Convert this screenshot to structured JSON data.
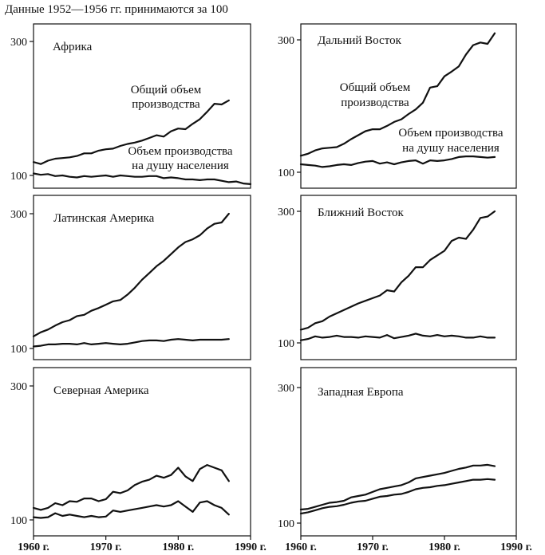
{
  "header": "Данные 1952—1956 гг. принимаются за 100",
  "colors": {
    "ink": "#111111",
    "background": "#ffffff"
  },
  "chart_data": [
    {
      "type": "line",
      "title": "Африка",
      "y_ticks": [
        100,
        300
      ],
      "xlim": [
        1960,
        1990
      ],
      "ylim": [
        90,
        320
      ],
      "annotations": [
        "Общий объем",
        "производства",
        "Объем производства",
        "на душу населения"
      ],
      "series": [
        {
          "name": "Общий объем производства",
          "x": [
            1960,
            1961,
            1962,
            1963,
            1964,
            1965,
            1966,
            1967,
            1968,
            1969,
            1970,
            1971,
            1972,
            1973,
            1974,
            1975,
            1976,
            1977,
            1978,
            1979,
            1980,
            1981,
            1982,
            1983,
            1984,
            1985,
            1986,
            1987
          ],
          "y": [
            120,
            117,
            122,
            125,
            126,
            127,
            129,
            133,
            133,
            137,
            139,
            140,
            144,
            147,
            149,
            152,
            156,
            160,
            158,
            166,
            170,
            169,
            177,
            184,
            195,
            207,
            206,
            212
          ]
        },
        {
          "name": "Объем производства на душу населения",
          "x": [
            1960,
            1961,
            1962,
            1963,
            1964,
            1965,
            1966,
            1967,
            1968,
            1969,
            1970,
            1971,
            1972,
            1973,
            1974,
            1975,
            1976,
            1977,
            1978,
            1979,
            1980,
            1981,
            1982,
            1983,
            1984,
            1985,
            1986,
            1987,
            1988,
            1989,
            1990
          ],
          "y": [
            103,
            101,
            102,
            99,
            100,
            98,
            97,
            99,
            98,
            99,
            100,
            98,
            100,
            99,
            98,
            98,
            99,
            99,
            96,
            97,
            96,
            94,
            94,
            93,
            94,
            94,
            92,
            90,
            91,
            88,
            87
          ]
        }
      ]
    },
    {
      "type": "line",
      "title": "Дальний Восток",
      "y_ticks": [
        100,
        300
      ],
      "xlim": [
        1960,
        1990
      ],
      "ylim": [
        90,
        320
      ],
      "annotations": [
        "Общий объем",
        "производства",
        "Объем производства",
        "на душу населения"
      ],
      "series": [
        {
          "name": "Общий объем производства",
          "x": [
            1960,
            1961,
            1962,
            1963,
            1964,
            1965,
            1966,
            1967,
            1968,
            1969,
            1970,
            1971,
            1972,
            1973,
            1974,
            1975,
            1976,
            1977,
            1978,
            1979,
            1980,
            1981,
            1982,
            1983,
            1984,
            1985,
            1986,
            1987
          ],
          "y": [
            125,
            128,
            133,
            136,
            137,
            138,
            143,
            150,
            156,
            162,
            165,
            165,
            170,
            176,
            180,
            188,
            195,
            205,
            228,
            230,
            245,
            252,
            260,
            278,
            292,
            296,
            294,
            310
          ]
        },
        {
          "name": "Объем производства на душу населения",
          "x": [
            1960,
            1961,
            1962,
            1963,
            1964,
            1965,
            1966,
            1967,
            1968,
            1969,
            1970,
            1971,
            1972,
            1973,
            1974,
            1975,
            1976,
            1977,
            1978,
            1979,
            1980,
            1981,
            1982,
            1983,
            1984,
            1985,
            1986,
            1987
          ],
          "y": [
            112,
            111,
            110,
            108,
            109,
            111,
            112,
            111,
            114,
            116,
            117,
            113,
            115,
            112,
            115,
            117,
            118,
            113,
            118,
            117,
            118,
            120,
            123,
            124,
            124,
            123,
            122,
            123
          ]
        }
      ]
    },
    {
      "type": "line",
      "title": "Латинская Америка",
      "y_ticks": [
        100,
        300
      ],
      "xlim": [
        1960,
        1990
      ],
      "ylim": [
        90,
        320
      ],
      "series": [
        {
          "name": "Общий объем производства",
          "x": [
            1960,
            1961,
            1962,
            1963,
            1964,
            1965,
            1966,
            1967,
            1968,
            1969,
            1970,
            1971,
            1972,
            1973,
            1974,
            1975,
            1976,
            1977,
            1978,
            1979,
            1980,
            1981,
            1982,
            1983,
            1984,
            1985,
            1986,
            1987
          ],
          "y": [
            118,
            124,
            128,
            134,
            139,
            142,
            148,
            150,
            156,
            160,
            165,
            170,
            172,
            180,
            190,
            202,
            212,
            222,
            230,
            240,
            250,
            258,
            262,
            268,
            278,
            285,
            287,
            300
          ]
        },
        {
          "name": "Объем производства на душу населения",
          "x": [
            1960,
            1961,
            1962,
            1963,
            1964,
            1965,
            1966,
            1967,
            1968,
            1969,
            1970,
            1971,
            1972,
            1973,
            1974,
            1975,
            1976,
            1977,
            1978,
            1979,
            1980,
            1981,
            1982,
            1983,
            1984,
            1985,
            1986,
            1987
          ],
          "y": [
            103,
            104,
            106,
            106,
            107,
            107,
            106,
            108,
            106,
            107,
            108,
            107,
            106,
            107,
            109,
            111,
            112,
            112,
            111,
            113,
            114,
            113,
            112,
            113,
            113,
            113,
            113,
            114
          ]
        }
      ]
    },
    {
      "type": "line",
      "title": "Ближний Восток",
      "y_ticks": [
        100,
        300
      ],
      "xlim": [
        1960,
        1990
      ],
      "ylim": [
        90,
        320
      ],
      "series": [
        {
          "name": "Общий объем производства",
          "x": [
            1960,
            1961,
            1962,
            1963,
            1964,
            1965,
            1966,
            1967,
            1968,
            1969,
            1970,
            1971,
            1972,
            1973,
            1974,
            1975,
            1976,
            1977,
            1978,
            1979,
            1980,
            1981,
            1982,
            1983,
            1984,
            1985,
            1986,
            1987
          ],
          "y": [
            120,
            123,
            130,
            133,
            140,
            145,
            150,
            155,
            160,
            164,
            168,
            172,
            180,
            178,
            192,
            202,
            215,
            215,
            226,
            233,
            240,
            255,
            260,
            258,
            272,
            290,
            292,
            300
          ]
        },
        {
          "name": "Объем производства на душу населения",
          "x": [
            1960,
            1961,
            1962,
            1963,
            1964,
            1965,
            1966,
            1967,
            1968,
            1969,
            1970,
            1971,
            1972,
            1973,
            1974,
            1975,
            1976,
            1977,
            1978,
            1979,
            1980,
            1981,
            1982,
            1983,
            1984,
            1985,
            1986,
            1987
          ],
          "y": [
            104,
            106,
            110,
            108,
            109,
            111,
            109,
            109,
            108,
            110,
            109,
            108,
            112,
            107,
            109,
            111,
            114,
            111,
            110,
            112,
            110,
            111,
            110,
            108,
            108,
            110,
            108,
            108
          ]
        }
      ]
    },
    {
      "type": "line",
      "title": "Северная Америка",
      "y_ticks": [
        100,
        300
      ],
      "xlim": [
        1960,
        1990
      ],
      "ylim": [
        90,
        320
      ],
      "series": [
        {
          "name": "Общий объем производства",
          "x": [
            1960,
            1961,
            1962,
            1963,
            1964,
            1965,
            1966,
            1967,
            1968,
            1969,
            1970,
            1971,
            1972,
            1973,
            1974,
            1975,
            1976,
            1977,
            1978,
            1979,
            1980,
            1981,
            1982,
            1983,
            1984,
            1985,
            1986,
            1987
          ],
          "y": [
            118,
            115,
            118,
            125,
            122,
            128,
            127,
            132,
            132,
            128,
            131,
            142,
            140,
            144,
            152,
            157,
            160,
            166,
            163,
            167,
            178,
            165,
            158,
            176,
            182,
            178,
            174,
            158
          ]
        },
        {
          "name": "Объем производства на душу населения",
          "x": [
            1960,
            1961,
            1962,
            1963,
            1964,
            1965,
            1966,
            1967,
            1968,
            1969,
            1970,
            1971,
            1972,
            1973,
            1974,
            1975,
            1976,
            1977,
            1978,
            1979,
            1980,
            1981,
            1982,
            1983,
            1984,
            1985,
            1986,
            1987
          ],
          "y": [
            104,
            103,
            104,
            110,
            106,
            108,
            106,
            104,
            106,
            104,
            105,
            114,
            112,
            114,
            116,
            118,
            120,
            122,
            120,
            122,
            128,
            120,
            112,
            126,
            128,
            122,
            118,
            108
          ]
        }
      ]
    },
    {
      "type": "line",
      "title": "Западная Европа",
      "y_ticks": [
        100,
        300
      ],
      "xlim": [
        1960,
        1990
      ],
      "ylim": [
        90,
        320
      ],
      "series": [
        {
          "name": "Общий объем производства",
          "x": [
            1960,
            1961,
            1962,
            1963,
            1964,
            1965,
            1966,
            1967,
            1968,
            1969,
            1970,
            1971,
            1972,
            1973,
            1974,
            1975,
            1976,
            1977,
            1978,
            1979,
            1980,
            1981,
            1982,
            1983,
            1984,
            1985,
            1986,
            1987
          ],
          "y": [
            120,
            121,
            124,
            127,
            130,
            131,
            133,
            138,
            140,
            142,
            146,
            150,
            152,
            154,
            156,
            160,
            166,
            168,
            170,
            172,
            174,
            177,
            180,
            182,
            185,
            185,
            186,
            184
          ]
        },
        {
          "name": "Объем производства на душу населения",
          "x": [
            1960,
            1961,
            1962,
            1963,
            1964,
            1965,
            1966,
            1967,
            1968,
            1969,
            1970,
            1971,
            1972,
            1973,
            1974,
            1975,
            1976,
            1977,
            1978,
            1979,
            1980,
            1981,
            1982,
            1983,
            1984,
            1985,
            1986,
            1987
          ],
          "y": [
            114,
            116,
            119,
            122,
            124,
            125,
            127,
            130,
            132,
            133,
            136,
            139,
            140,
            142,
            143,
            146,
            150,
            152,
            153,
            155,
            156,
            158,
            160,
            162,
            164,
            164,
            165,
            164
          ]
        }
      ]
    }
  ],
  "x_axis": {
    "ticks": [
      1960,
      1970,
      1980,
      1990
    ],
    "labels": [
      "1960 г.",
      "1970 г.",
      "1980 г.",
      "1990 г."
    ]
  }
}
